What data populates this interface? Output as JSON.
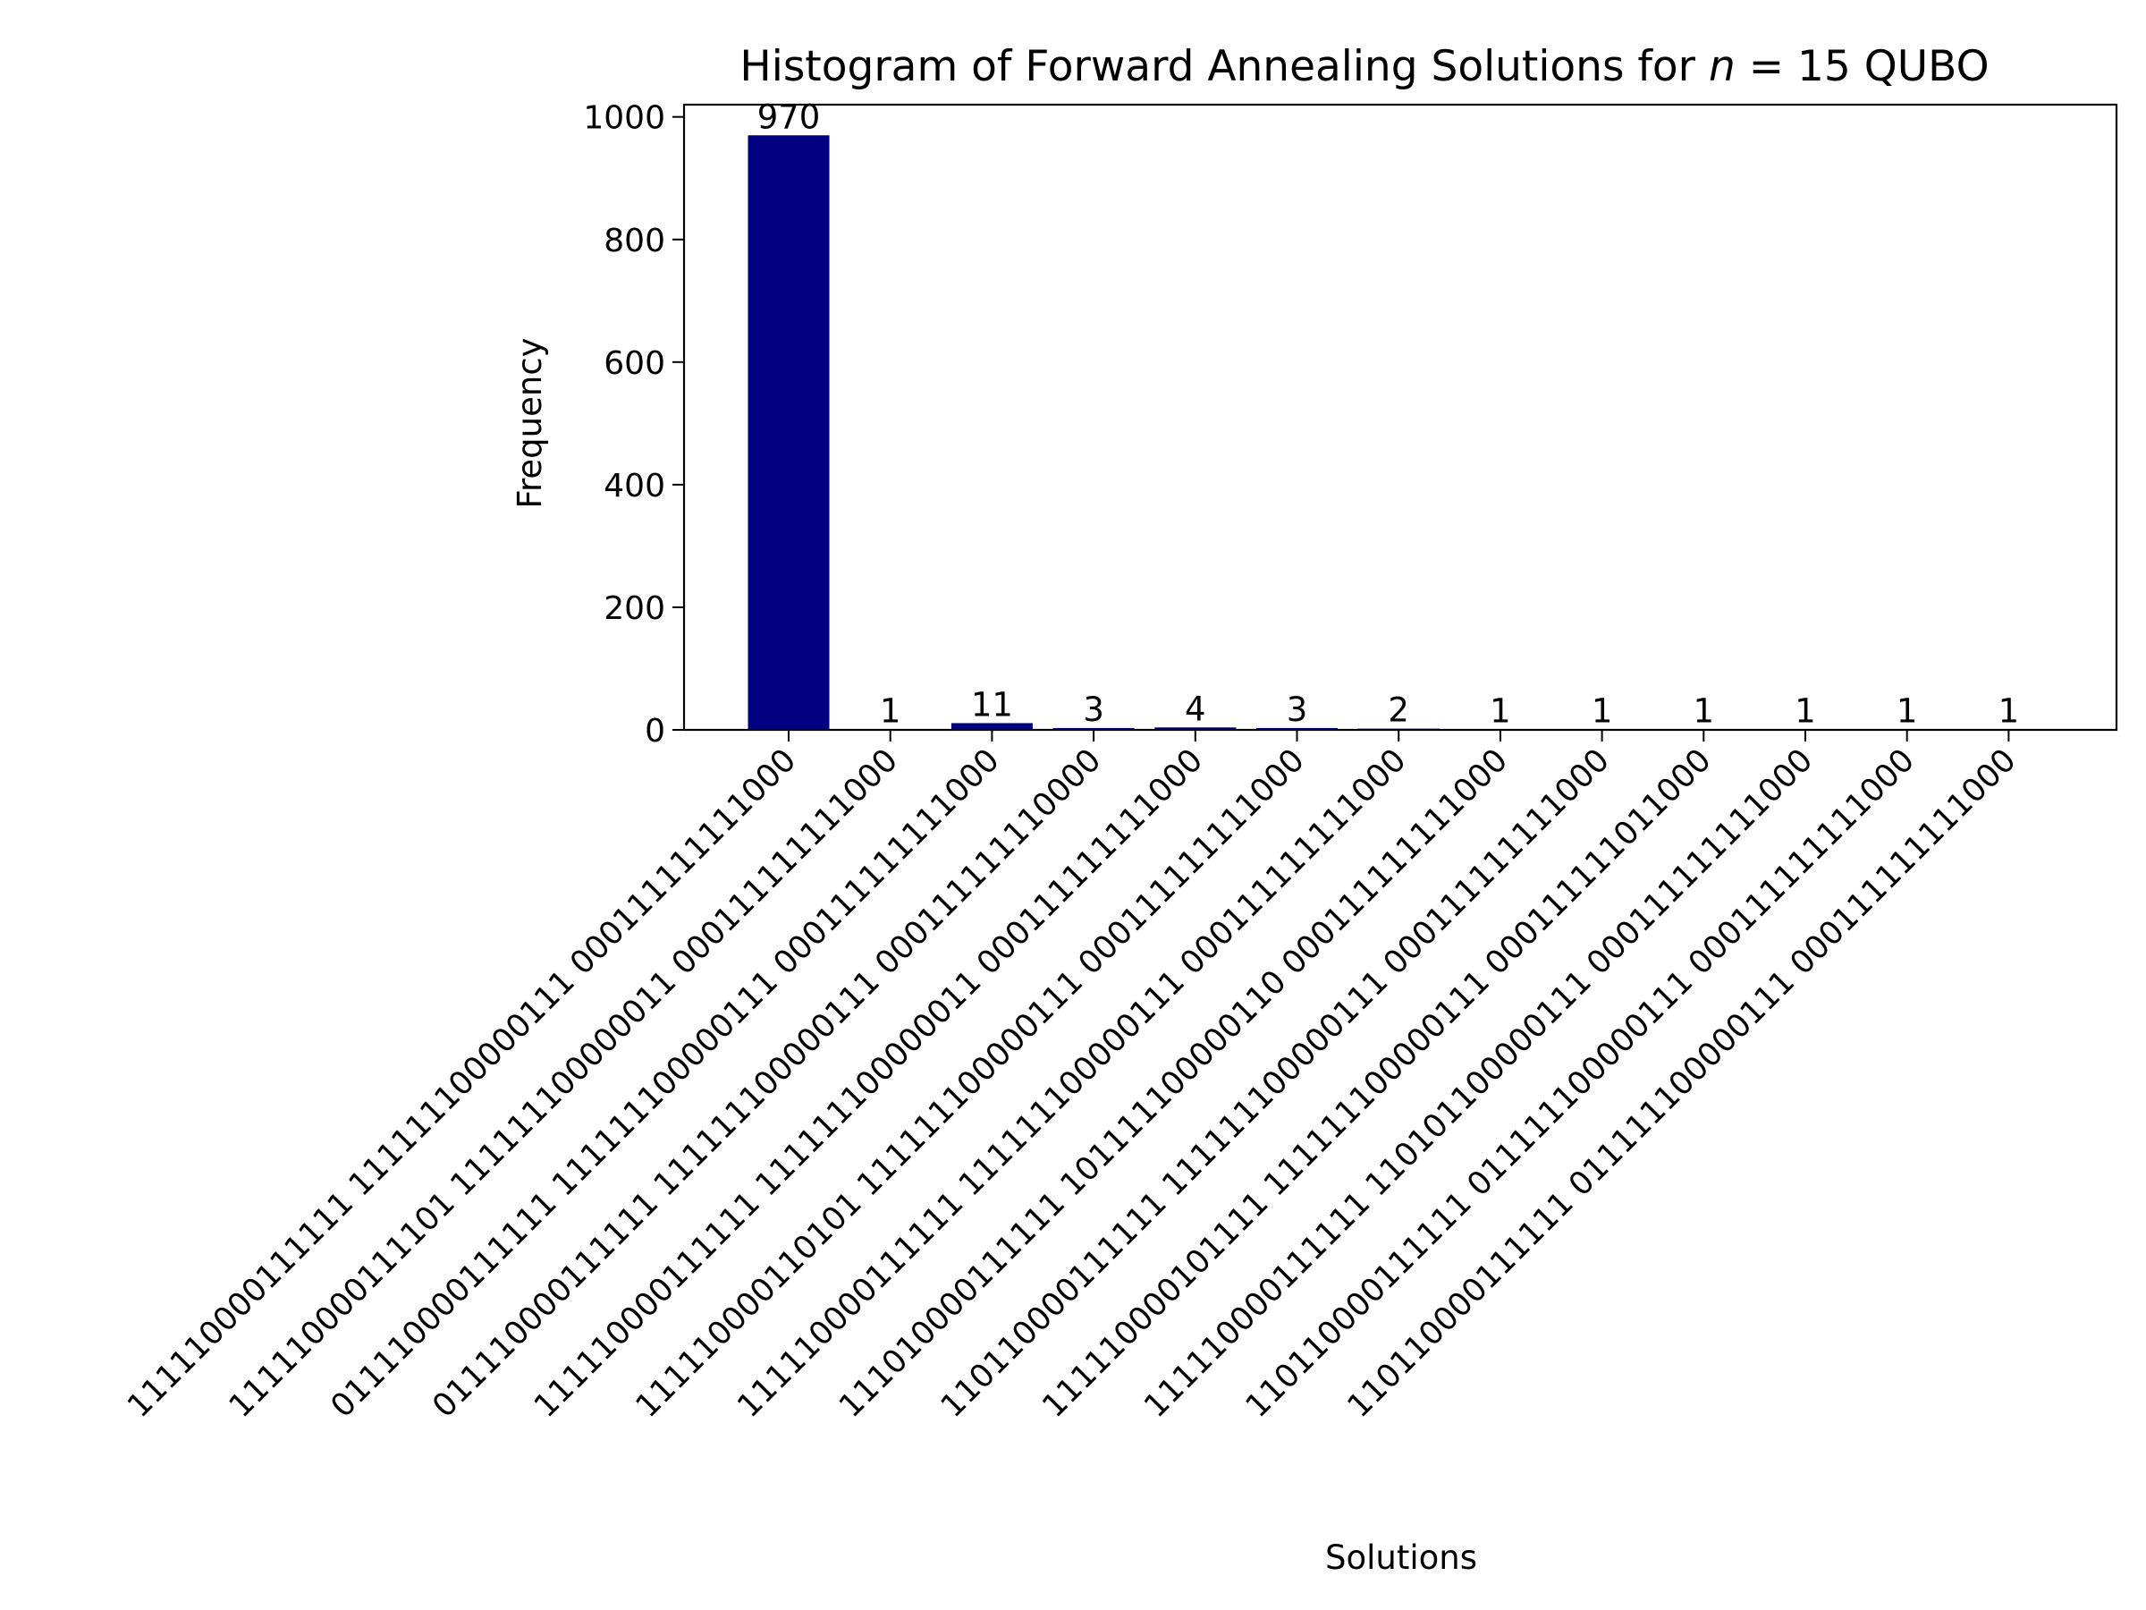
{
  "chart_data": {
    "type": "bar",
    "title_prefix": "Histogram of Forward Annealing Solutions for ",
    "title_var": "n",
    "title_suffix": " = 15 QUBO",
    "xlabel": "Solutions",
    "ylabel": "Frequency",
    "ylim": [
      0,
      1020
    ],
    "yticks": [
      0,
      200,
      400,
      600,
      800,
      1000
    ],
    "bar_color": "#000080",
    "grid": false,
    "categories": [
      "111110000111111 111111100000111 000111111111000",
      "111110000111101 111111100000011 000111111111000",
      "011110000111111 111111100000111 000111111111000",
      "011110000111111 111111100000111 000111111110000",
      "111110000111111 111111100000011 000111111111000",
      "111110000110101 111111100000111 000111111111000",
      "111110000111111 111111100000111 000111111111000",
      "111010000111111 101111100000110 000111111111000",
      "110110000111111 111111100000111 000111111111000",
      "111110000101111 111111100000111 000111111011000",
      "111110000111111 110101100000111 000111111111000",
      "110110000111111 011111100000111 000111111111000",
      "110110000111111 011111100000111 000111111111000"
    ],
    "values": [
      970,
      1,
      11,
      3,
      4,
      3,
      2,
      1,
      1,
      1,
      1,
      1,
      1
    ],
    "data_labels": [
      "970",
      "1",
      "11",
      "3",
      "4",
      "3",
      "2",
      "1",
      "1",
      "1",
      "1",
      "1",
      "1"
    ]
  }
}
